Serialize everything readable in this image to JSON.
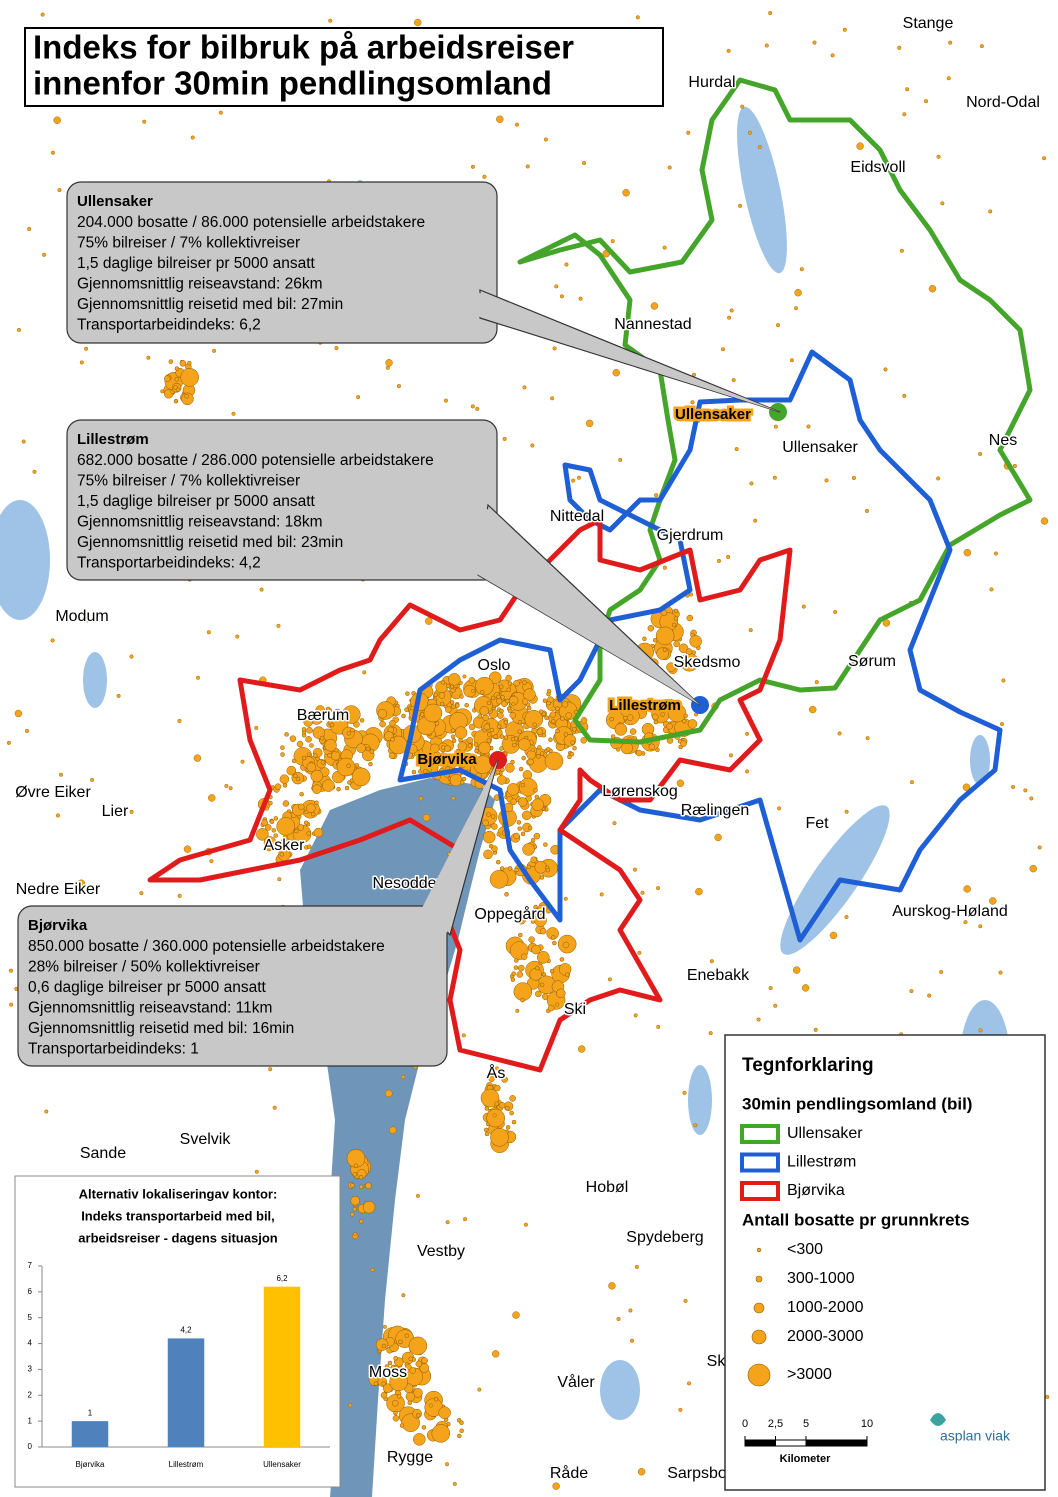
{
  "title": {
    "lines": [
      "Indeks for bilbruk på arbeidsreiser",
      "innenfor 30min pendlingsomland"
    ]
  },
  "info_boxes": [
    {
      "title": "Ullensaker",
      "lines": [
        "204.000 bosatte / 86.000 potensielle arbeidstakere",
        "75% bilreiser / 7% kollektivreiser",
        "1,5 daglige bilreiser pr 5000 ansatt",
        "Gjennomsnittlig reiseavstand: 26km",
        "Gjennomsnittlig reisetid med bil: 27min",
        "Transportarbeidindeks: 6,2"
      ]
    },
    {
      "title": "Lillestrøm",
      "lines": [
        "682.000 bosatte / 286.000 potensielle arbeidstakere",
        "75% bilreiser / 7% kollektivreiser",
        "1,5 daglige bilreiser pr 5000 ansatt",
        "Gjennomsnittlig reiseavstand: 18km",
        "Gjennomsnittlig reisetid med bil: 23min",
        "Transportarbeidindeks: 4,2"
      ]
    },
    {
      "title": "Bjørvika",
      "lines": [
        "850.000 bosatte / 360.000 potensielle arbeidstakere",
        "28% bilreiser / 50% kollektivreiser",
        "0,6 daglige bilreiser pr 5000 ansatt",
        "Gjennomsnittlig reiseavstand: 11km",
        "Gjennomsnittlig reisetid med bil: 16min",
        "Transportarbeidindeks: 1"
      ]
    }
  ],
  "locations": [
    {
      "label": "Ullensaker",
      "color": "#44a52a"
    },
    {
      "label": "Lillestrøm",
      "color": "#1f5fd6"
    },
    {
      "label": "Bjørvika",
      "color": "#e01b1b"
    }
  ],
  "place_names": [
    "Stange",
    "Hurdal",
    "Nord-Odal",
    "Eidsvoll",
    "Nannestad",
    "Ullensaker",
    "Nes",
    "Nittedal",
    "Gjerdrum",
    "Modum",
    "Skedsmo",
    "Oslo",
    "Sørum",
    "Bærum",
    "Øvre Eiker",
    "Lier",
    "Lørenskog",
    "Rælingen",
    "Fet",
    "Asker",
    "Nesodden",
    "Nedre Eiker",
    "Oppegård",
    "Aurskog-Høland",
    "Enebakk",
    "Ski",
    "Ås",
    "Svelvik",
    "Sande",
    "Hobøl",
    "Vestby",
    "Spydeberg",
    "Moss",
    "Våler",
    "Sk",
    "Rygge",
    "Råde",
    "Sarpsbo"
  ],
  "legend": {
    "title": "Tegnforklaring",
    "regions_title": "30min pendlingsomland (bil)",
    "regions": [
      {
        "label": "Ullensaker",
        "color": "#44a52a"
      },
      {
        "label": "Lillestrøm",
        "color": "#1f5fd6"
      },
      {
        "label": "Bjørvika",
        "color": "#e01b1b"
      }
    ],
    "sizes_title": "Antall bosatte pr grunnkrets",
    "sizes": [
      "<300",
      "300-1000",
      "1000-2000",
      "2000-3000",
      ">3000"
    ]
  },
  "scale_bar": {
    "ticks": [
      0,
      {
        "value": 2.5,
        "label": "2,5"
      },
      5,
      10
    ],
    "unit": "Kilometer"
  },
  "logo": "asplan viak",
  "chart_data": {
    "type": "bar",
    "title": [
      "Alternativ lokaliseringav kontor:",
      "Indeks transportarbeid med bil,",
      "arbeidsreiser - dagens situasjon"
    ],
    "categories": [
      "Bjørvika",
      "Lillestrøm",
      "Ullensaker"
    ],
    "values": [
      1,
      4.2,
      6.2
    ],
    "value_labels": [
      "1",
      "4,2",
      "6,2"
    ],
    "colors": [
      "#4f81bd",
      "#4f81bd",
      "#ffc000"
    ],
    "ylim": [
      0,
      7
    ],
    "yticks": [
      0,
      1,
      2,
      3,
      4,
      5,
      6,
      7
    ]
  }
}
